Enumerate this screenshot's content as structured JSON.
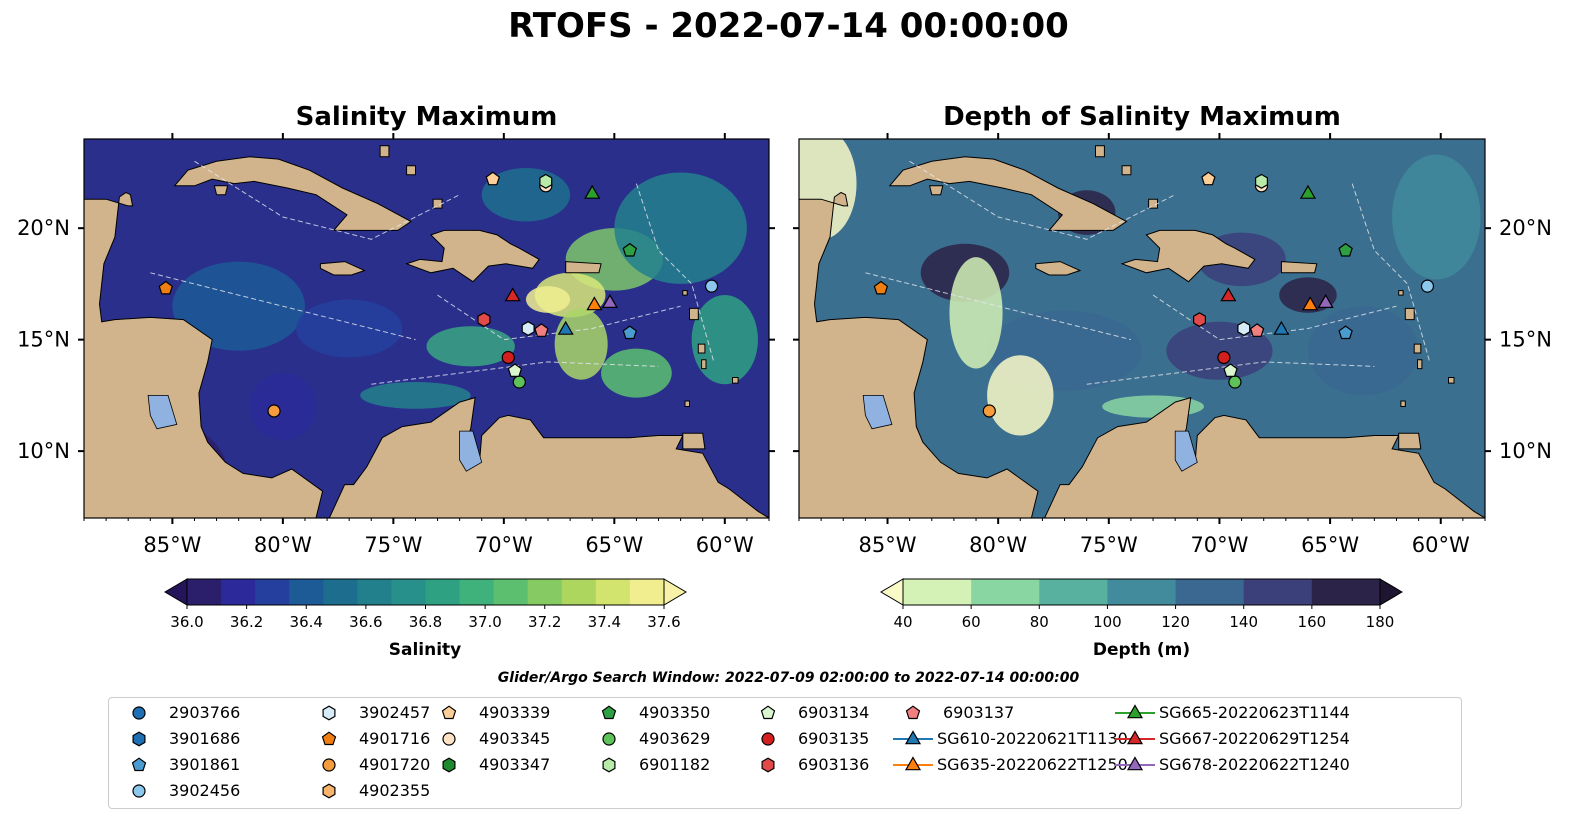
{
  "figure": {
    "title": "RTOFS - 2022-07-14 00:00:00",
    "search_window": "Glider/Argo Search Window: 2022-07-09 02:00:00 to 2022-07-14 00:00:00"
  },
  "maps": {
    "extent": {
      "lon": [
        -89,
        -58
      ],
      "lat": [
        7,
        24
      ]
    },
    "lon_ticks": [
      "85°W",
      "80°W",
      "75°W",
      "70°W",
      "65°W",
      "60°W"
    ],
    "lat_ticks": [
      "20°N",
      "15°N",
      "10°N"
    ],
    "left": {
      "title": "Salinity Maximum",
      "ocean_color": "#2a2f8c"
    },
    "right": {
      "title": "Depth of Salinity Maximum",
      "ocean_color": "#3b6f8f"
    }
  },
  "colorbars": {
    "salinity": {
      "label": "Salinity",
      "ticks": [
        "36.0",
        "36.2",
        "36.4",
        "36.6",
        "36.8",
        "37.0",
        "37.2",
        "37.4",
        "37.6"
      ],
      "colors": [
        "#2b1f6b",
        "#2c2a9a",
        "#243f9e",
        "#1c5b96",
        "#1d6e8e",
        "#22808c",
        "#27908a",
        "#2fa183",
        "#3fb17a",
        "#5cbf70",
        "#85ca62",
        "#acd65e",
        "#d2e46e",
        "#f1ee90"
      ],
      "extend_low": "#24145a",
      "extend_high": "#f7f2a8"
    },
    "depth": {
      "label": "Depth (m)",
      "ticks": [
        "40",
        "60",
        "80",
        "100",
        "120",
        "140",
        "160",
        "180"
      ],
      "colors": [
        "#d4f1b6",
        "#8ad6a3",
        "#58b19f",
        "#428b9c",
        "#3a6891",
        "#3b3f7a",
        "#2b2348"
      ],
      "extend_low": "#fafac8",
      "extend_high": "#1e1530"
    }
  },
  "observations": [
    {
      "id": "2903766",
      "kind": "argo",
      "marker": "circle",
      "color": "#1f6fb4",
      "lon": null,
      "lat": null
    },
    {
      "id": "3901686",
      "kind": "argo",
      "marker": "hexagon",
      "color": "#1f6fb4",
      "lon": null,
      "lat": null
    },
    {
      "id": "3901861",
      "kind": "argo",
      "marker": "pentagon",
      "color": "#4a9bd0",
      "lon": -64.3,
      "lat": 15.3
    },
    {
      "id": "3902456",
      "kind": "argo",
      "marker": "circle",
      "color": "#8cc7ec",
      "lon": -60.6,
      "lat": 17.4
    },
    {
      "id": "3902457",
      "kind": "argo",
      "marker": "hexagon",
      "color": "#d6ecf8",
      "lon": -68.9,
      "lat": 15.5
    },
    {
      "id": "4901716",
      "kind": "argo",
      "marker": "pentagon",
      "color": "#f07f13",
      "lon": -85.3,
      "lat": 17.3
    },
    {
      "id": "4901720",
      "kind": "argo",
      "marker": "circle",
      "color": "#f59c3c",
      "lon": -80.4,
      "lat": 11.8
    },
    {
      "id": "4902355",
      "kind": "argo",
      "marker": "hexagon",
      "color": "#f8b46a",
      "lon": null,
      "lat": null
    },
    {
      "id": "4903339",
      "kind": "argo",
      "marker": "pentagon",
      "color": "#fbcf97",
      "lon": -70.5,
      "lat": 22.2
    },
    {
      "id": "4903345",
      "kind": "argo",
      "marker": "circle",
      "color": "#fde2c3",
      "lon": -68.1,
      "lat": 21.9
    },
    {
      "id": "4903347",
      "kind": "argo",
      "marker": "hexagon",
      "color": "#1e8a2e",
      "lon": null,
      "lat": null
    },
    {
      "id": "4903350",
      "kind": "argo",
      "marker": "pentagon",
      "color": "#2ea043",
      "lon": -64.3,
      "lat": 19.0
    },
    {
      "id": "4903629",
      "kind": "argo",
      "marker": "circle",
      "color": "#5dc25a",
      "lon": -69.3,
      "lat": 13.1
    },
    {
      "id": "6901182",
      "kind": "argo",
      "marker": "hexagon",
      "color": "#b8eaa8",
      "lon": -68.1,
      "lat": 22.1
    },
    {
      "id": "6903134",
      "kind": "argo",
      "marker": "pentagon",
      "color": "#d9f6cf",
      "lon": -69.5,
      "lat": 13.6
    },
    {
      "id": "6903135",
      "kind": "argo",
      "marker": "circle",
      "color": "#d41f1f",
      "lon": -69.8,
      "lat": 14.2
    },
    {
      "id": "6903136",
      "kind": "argo",
      "marker": "hexagon",
      "color": "#e24a4a",
      "lon": -70.9,
      "lat": 15.9
    },
    {
      "id": "6903137",
      "kind": "argo",
      "marker": "pentagon",
      "color": "#f08080",
      "lon": -68.3,
      "lat": 15.4
    },
    {
      "id": "SG610-20220621T1130",
      "kind": "glider",
      "marker": "triangle",
      "color": "#1f77b4",
      "lon": -67.2,
      "lat": 15.5
    },
    {
      "id": "SG635-20220622T1250",
      "kind": "glider",
      "marker": "triangle",
      "color": "#ff7f0e",
      "lon": -65.9,
      "lat": 16.6
    },
    {
      "id": "SG665-20220623T1144",
      "kind": "glider",
      "marker": "triangle",
      "color": "#2ca02c",
      "lon": -66.0,
      "lat": 21.6
    },
    {
      "id": "SG667-20220629T1254",
      "kind": "glider",
      "marker": "triangle",
      "color": "#d62728",
      "lon": -69.6,
      "lat": 17.0
    },
    {
      "id": "SG678-20220622T1240",
      "kind": "glider",
      "marker": "triangle",
      "color": "#9467bd",
      "lon": -65.2,
      "lat": 16.7
    }
  ]
}
